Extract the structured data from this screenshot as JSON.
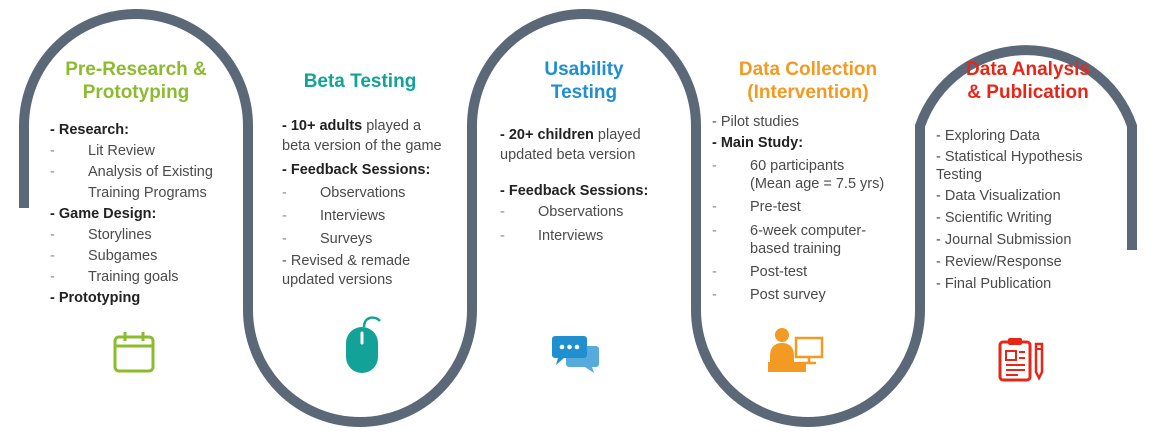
{
  "colors": {
    "track": "#5b6878",
    "stage1": "#8dbb2e",
    "stage2": "#12a297",
    "stage3": "#1f8fd0",
    "stage4": "#f39a22",
    "stage5": "#e62718"
  },
  "stages": [
    {
      "title": "Pre-Research &\nPrototyping",
      "icon": "calendar-icon",
      "rows": [
        {
          "text": "- Research:",
          "style": "bold"
        },
        {
          "text": "Lit Review",
          "style": "sub"
        },
        {
          "text": "Analysis of Existing\nTraining Programs",
          "style": "sub"
        },
        {
          "text": "- Game Design:",
          "style": "bold"
        },
        {
          "text": "Storylines",
          "style": "sub"
        },
        {
          "text": "Subgames",
          "style": "sub"
        },
        {
          "text": "Training goals",
          "style": "sub"
        },
        {
          "text": "- Prototyping",
          "style": "bold"
        }
      ]
    },
    {
      "title": "Beta Testing",
      "icon": "mouse-icon",
      "rows": [
        {
          "lead": "- 10+ adults",
          "text": " played a beta version of the game",
          "style": "lead"
        },
        {
          "text": "- Feedback Sessions:",
          "style": "bold"
        },
        {
          "text": "Observations",
          "style": "sub"
        },
        {
          "text": "Interviews",
          "style": "sub"
        },
        {
          "text": "Surveys",
          "style": "sub"
        },
        {
          "text": "- Revised & remade updated versions",
          "style": "plain"
        }
      ]
    },
    {
      "title": "Usability\nTesting",
      "icon": "chat-bubbles-icon",
      "rows": [
        {
          "lead": "- 20+ children",
          "text": " played updated beta version",
          "style": "lead"
        },
        {
          "text": "-  Feedback Sessions:",
          "style": "bold gap"
        },
        {
          "text": "Observations",
          "style": "sub"
        },
        {
          "text": "Interviews",
          "style": "sub"
        }
      ]
    },
    {
      "title": "Data Collection\n(Intervention)",
      "icon": "computer-user-icon",
      "rows": [
        {
          "text": "- Pilot studies",
          "style": "plain"
        },
        {
          "text": "- Main Study:",
          "style": "bold"
        },
        {
          "text": "60 participants\n(Mean age =  7.5 yrs)",
          "style": "sub"
        },
        {
          "text": "Pre-test",
          "style": "sub"
        },
        {
          "text": "6-week computer-\nbased training",
          "style": "sub"
        },
        {
          "text": "Post-test",
          "style": "sub"
        },
        {
          "text": "Post survey",
          "style": "sub"
        }
      ]
    },
    {
      "title": "Data Analysis\n& Publication",
      "icon": "clipboard-report-icon",
      "rows": [
        {
          "text": "- Exploring Data",
          "style": "plain"
        },
        {
          "text": "- Statistical Hypothesis Testing",
          "style": "plain"
        },
        {
          "text": "- Data Visualization",
          "style": "plain"
        },
        {
          "text": "- Scientific Writing",
          "style": "plain"
        },
        {
          "text": "- Journal Submission",
          "style": "plain"
        },
        {
          "text": "- Review/Response",
          "style": "plain"
        },
        {
          "text": "- Final Publication",
          "style": "plain"
        }
      ]
    }
  ]
}
